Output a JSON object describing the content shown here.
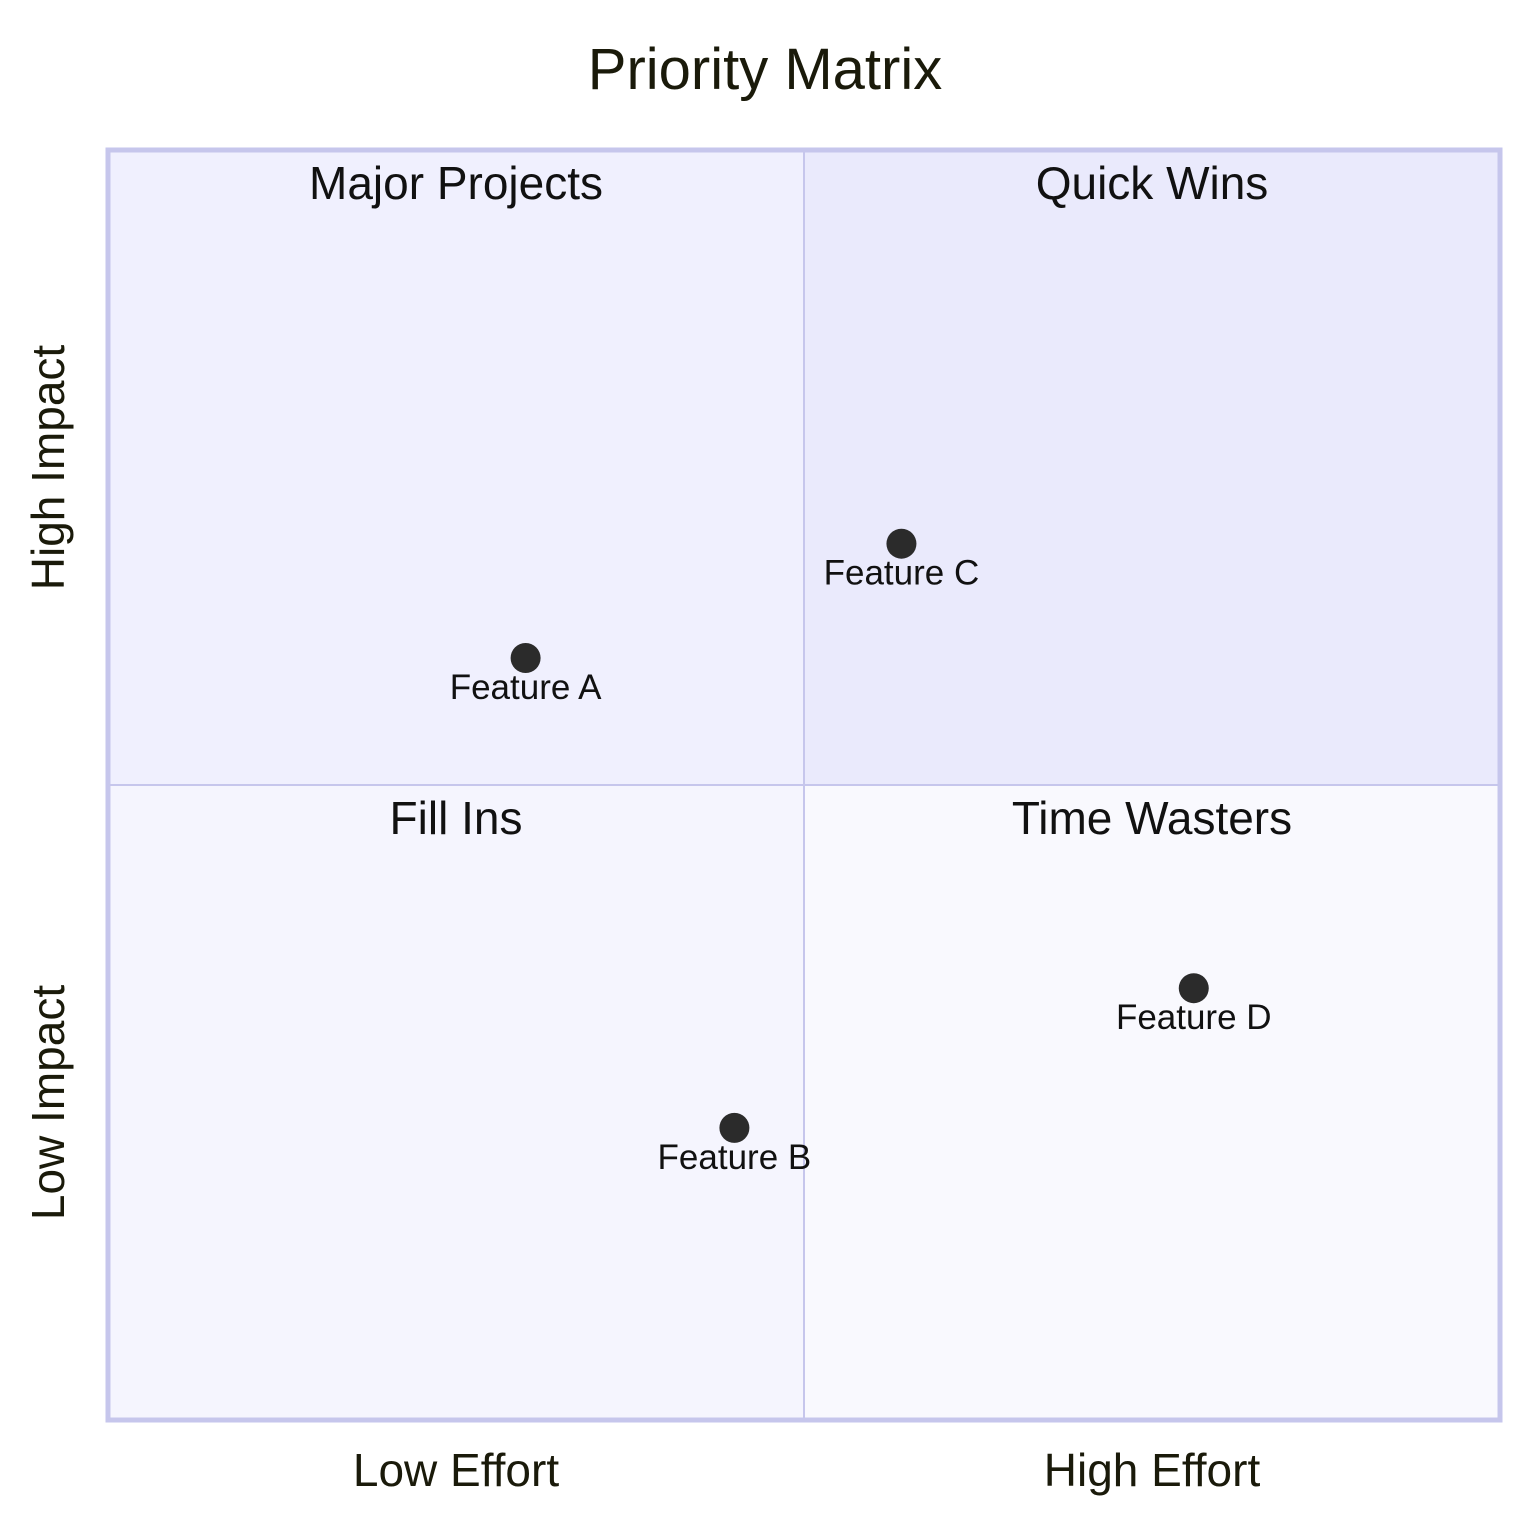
{
  "chart_data": {
    "type": "scatter",
    "title": "Priority Matrix",
    "x_axis": {
      "low_label": "Low Effort",
      "high_label": "High Effort",
      "range": [
        0,
        1
      ]
    },
    "y_axis": {
      "low_label": "Low Impact",
      "high_label": "High Impact",
      "range": [
        0,
        1
      ]
    },
    "quadrants": {
      "top_left": {
        "label": "Major Projects",
        "fill": "#f0f0fe"
      },
      "top_right": {
        "label": "Quick Wins",
        "fill": "#eaeafc"
      },
      "bottom_left": {
        "label": "Fill Ins",
        "fill": "#f5f5fe"
      },
      "bottom_right": {
        "label": "Time Wasters",
        "fill": "#f9f9fe"
      }
    },
    "points": [
      {
        "label": "Feature A",
        "x": 0.3,
        "y": 0.6
      },
      {
        "label": "Feature B",
        "x": 0.45,
        "y": 0.23
      },
      {
        "label": "Feature C",
        "x": 0.57,
        "y": 0.69
      },
      {
        "label": "Feature D",
        "x": 0.78,
        "y": 0.34
      }
    ],
    "colors": {
      "border": "#c6c6ec",
      "divider": "#c6c6ec",
      "point": "#2b2b2b",
      "text": "#1a1a0a"
    }
  }
}
